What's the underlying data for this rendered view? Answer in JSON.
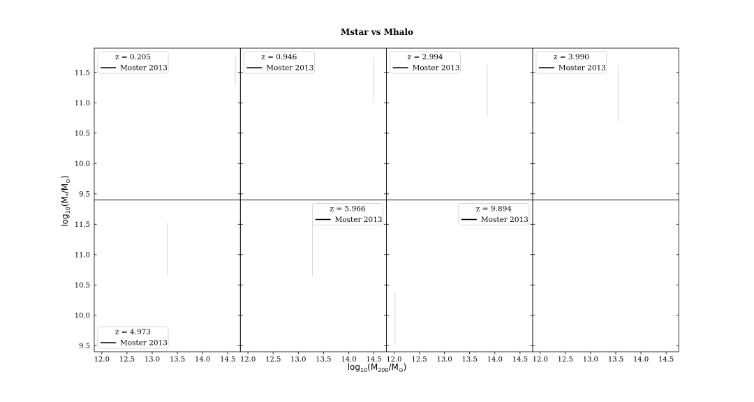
{
  "chart_data": {
    "type": "line",
    "title": "Mstar vs Mhalo",
    "xlabel": "log10(M200/M⊙)",
    "ylabel": "log10(M*/M⊙)",
    "xlim": [
      11.85,
      14.75
    ],
    "ylim": [
      9.4,
      11.9
    ],
    "xticks": [
      12.0,
      12.5,
      13.0,
      13.5,
      14.0,
      14.5
    ],
    "xtick_labels": [
      "12.0",
      "12.5",
      "13.0",
      "13.5",
      "14.0",
      "14.5"
    ],
    "yticks": [
      9.5,
      10.0,
      10.5,
      11.0,
      11.5
    ],
    "ytick_labels": [
      "9.5",
      "10.0",
      "10.5",
      "11.0",
      "11.5"
    ],
    "grid": false,
    "panels": [
      {
        "label": "z = 0.205",
        "legend_loc": "upper left",
        "series": [
          {
            "name": "Moster 2013",
            "x": [
              14.65,
              14.65
            ],
            "y": [
              11.28,
              11.8
            ]
          }
        ]
      },
      {
        "label": "z = 0.946",
        "legend_loc": "upper left",
        "series": [
          {
            "name": "Moster 2013",
            "x": [
              14.5,
              14.5
            ],
            "y": [
              11.02,
              11.75
            ]
          }
        ]
      },
      {
        "label": "z = 2.994",
        "legend_loc": "upper left",
        "series": [
          {
            "name": "Moster 2013",
            "x": [
              13.85,
              13.85
            ],
            "y": [
              10.77,
              11.62
            ]
          }
        ]
      },
      {
        "label": "z = 3.990",
        "legend_loc": "upper left",
        "series": [
          {
            "name": "Moster 2013",
            "x": [
              13.55,
              13.55
            ],
            "y": [
              10.7,
              11.6
            ]
          }
        ]
      },
      {
        "label": "z = 4.973",
        "legend_loc": "lower left",
        "series": [
          {
            "name": "Moster 2013",
            "x": [
              13.3,
              13.3
            ],
            "y": [
              10.65,
              11.52
            ]
          }
        ]
      },
      {
        "label": "z = 5.966",
        "legend_loc": "upper right",
        "series": [
          {
            "name": "Moster 2013",
            "x": [
              13.28,
              13.28
            ],
            "y": [
              10.65,
              11.52
            ]
          }
        ]
      },
      {
        "label": "z = 9.894",
        "legend_loc": "upper right",
        "series": [
          {
            "name": "Moster 2013",
            "x": [
              12.02,
              12.02
            ],
            "y": [
              9.52,
              10.37
            ]
          }
        ]
      },
      {
        "label": null,
        "legend_loc": null,
        "series": []
      }
    ]
  }
}
